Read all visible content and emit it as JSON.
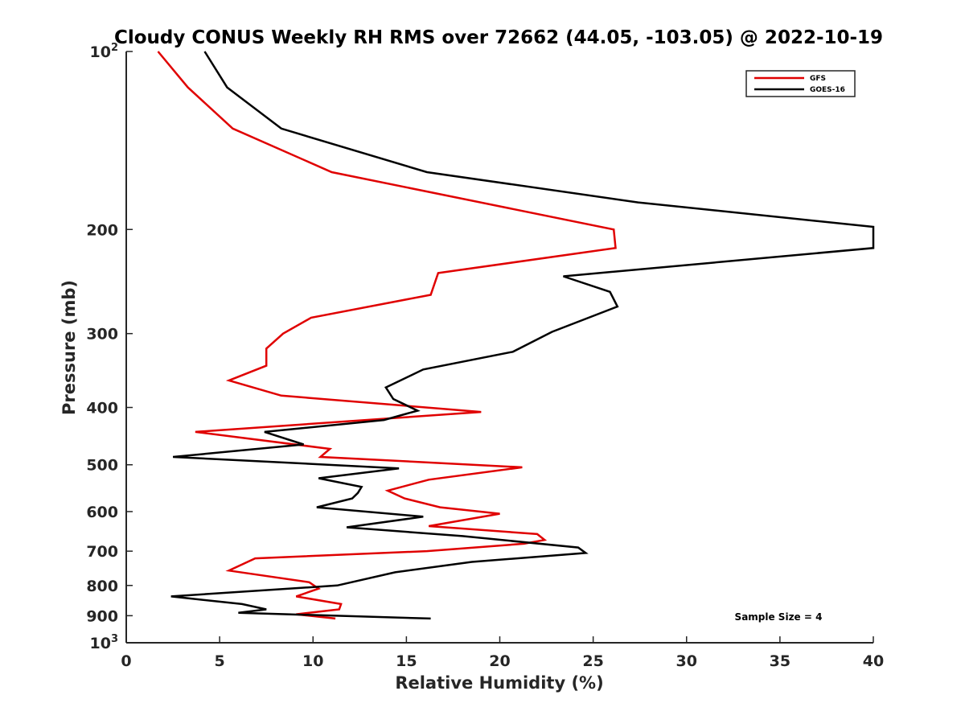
{
  "chart_data": {
    "type": "line",
    "title": "Cloudy CONUS Weekly RH RMS over 72662 (44.05, -103.05) @ 2022-10-19",
    "xlabel": "Relative Humidity (%)",
    "ylabel": "Pressure (mb)",
    "xlim": [
      0,
      40
    ],
    "ylim": [
      100,
      1000
    ],
    "yscale": "log",
    "y_reversed": true,
    "grid": false,
    "legend_position": "top-right",
    "x_ticks": [
      "0",
      "5",
      "10",
      "15",
      "20",
      "25",
      "30",
      "35",
      "40"
    ],
    "y_ticks": [
      {
        "base": "10",
        "exp": "2"
      },
      {
        "label": "200"
      },
      {
        "label": "300"
      },
      {
        "label": "400"
      },
      {
        "label": "500"
      },
      {
        "label": "600"
      },
      {
        "label": "700"
      },
      {
        "label": "800"
      },
      {
        "label": "900"
      },
      {
        "base": "10",
        "exp": "3"
      }
    ],
    "series": [
      {
        "name": "GFS",
        "color": "#e00000",
        "points": [
          [
            1.7,
            100
          ],
          [
            3.3,
            115
          ],
          [
            5.7,
            135
          ],
          [
            11.0,
            160
          ],
          [
            26.1,
            200
          ],
          [
            26.2,
            215
          ],
          [
            16.7,
            237
          ],
          [
            16.3,
            258
          ],
          [
            9.9,
            282
          ],
          [
            8.4,
            300
          ],
          [
            7.5,
            318
          ],
          [
            7.5,
            340
          ],
          [
            5.5,
            360
          ],
          [
            8.3,
            382
          ],
          [
            19.0,
            407
          ],
          [
            3.7,
            440
          ],
          [
            10.9,
            470
          ],
          [
            10.4,
            485
          ],
          [
            21.2,
            505
          ],
          [
            16.2,
            530
          ],
          [
            14.0,
            553
          ],
          [
            14.9,
            570
          ],
          [
            16.8,
            590
          ],
          [
            20.0,
            605
          ],
          [
            16.2,
            635
          ],
          [
            22.0,
            655
          ],
          [
            22.4,
            670
          ],
          [
            21.3,
            680
          ],
          [
            16.1,
            700
          ],
          [
            6.9,
            720
          ],
          [
            5.5,
            755
          ],
          [
            9.8,
            790
          ],
          [
            10.3,
            810
          ],
          [
            9.1,
            835
          ],
          [
            11.5,
            860
          ],
          [
            11.4,
            878
          ],
          [
            9.1,
            895
          ],
          [
            11.2,
            910
          ]
        ]
      },
      {
        "name": "GOES-16",
        "color": "#000000",
        "points": [
          [
            4.2,
            100
          ],
          [
            5.4,
            115
          ],
          [
            8.3,
            135
          ],
          [
            16.1,
            160
          ],
          [
            27.4,
            180
          ],
          [
            40.0,
            198
          ],
          [
            40.0,
            215
          ],
          [
            23.4,
            240
          ],
          [
            25.9,
            255
          ],
          [
            26.3,
            270
          ],
          [
            22.8,
            298
          ],
          [
            20.7,
            322
          ],
          [
            15.9,
            345
          ],
          [
            13.9,
            370
          ],
          [
            14.3,
            387
          ],
          [
            15.6,
            405
          ],
          [
            13.8,
            420
          ],
          [
            7.4,
            440
          ],
          [
            9.5,
            462
          ],
          [
            2.5,
            485
          ],
          [
            14.6,
            507
          ],
          [
            10.3,
            527
          ],
          [
            12.6,
            545
          ],
          [
            12.4,
            558
          ],
          [
            12.1,
            570
          ],
          [
            10.2,
            590
          ],
          [
            15.9,
            612
          ],
          [
            11.8,
            638
          ],
          [
            18.0,
            660
          ],
          [
            24.2,
            690
          ],
          [
            24.6,
            705
          ],
          [
            18.5,
            730
          ],
          [
            14.4,
            760
          ],
          [
            11.3,
            800
          ],
          [
            2.4,
            835
          ],
          [
            6.2,
            860
          ],
          [
            7.5,
            878
          ],
          [
            6.0,
            890
          ],
          [
            16.3,
            910
          ]
        ]
      }
    ],
    "annotations": [
      "Sample Size = 4"
    ]
  }
}
